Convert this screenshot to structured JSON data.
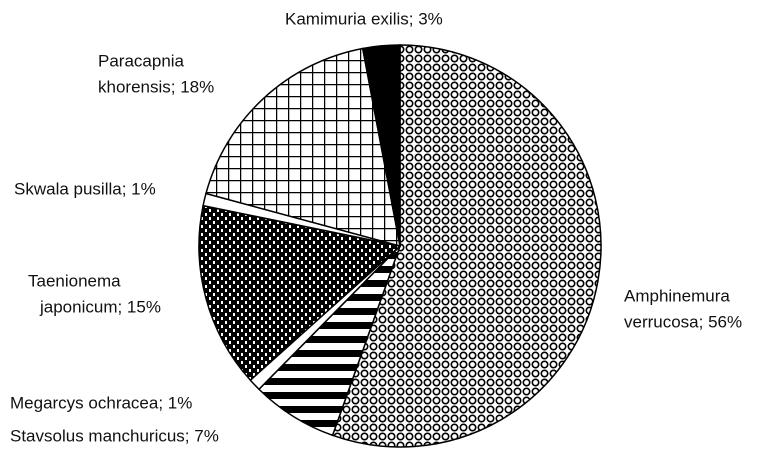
{
  "chart_data": {
    "type": "pie",
    "labels": [
      [
        "Amphinemura",
        "verrucosa; 56%"
      ],
      [
        "Stavsolus manchuricus; 7%"
      ],
      [
        "Megarcys ochracea; 1%"
      ],
      [
        "Taenionema",
        "japonicum; 15%"
      ],
      [
        "Skwala pusilla; 1%"
      ],
      [
        "Paracapnia",
        "khorensis; 18%"
      ],
      [
        "Kamimuria exilis; 3%"
      ]
    ],
    "values": [
      56,
      7,
      1,
      15,
      1,
      18,
      3
    ],
    "patterns": [
      "circles",
      "hstripes",
      "none",
      "bricks",
      "none",
      "grid",
      "solid"
    ]
  }
}
